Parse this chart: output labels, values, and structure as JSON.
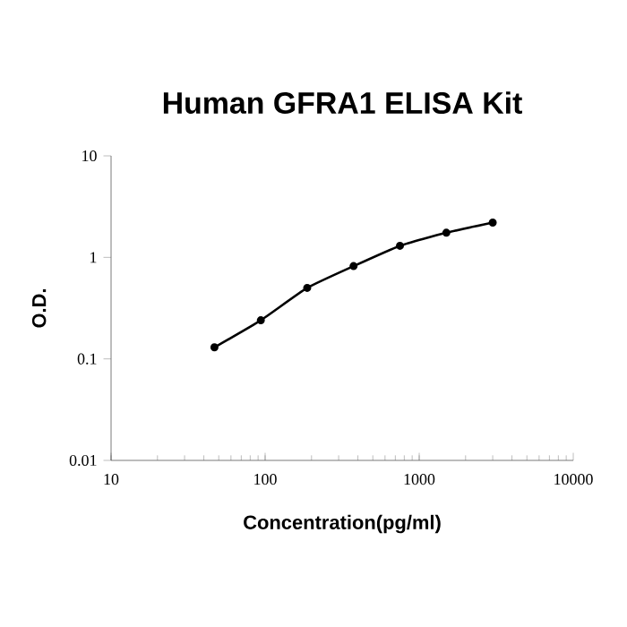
{
  "chart_data": {
    "type": "line",
    "title": "Human GFRA1 ELISA Kit",
    "xlabel": "Concentration(pg/ml)",
    "ylabel": "O.D.",
    "series": [
      {
        "color": "#000000",
        "x": [
          46.875,
          93.75,
          187.5,
          375,
          750,
          1500,
          3000
        ],
        "values": [
          0.13,
          0.24,
          0.5,
          0.82,
          1.3,
          1.75,
          2.2
        ]
      }
    ],
    "log": "xy",
    "xlim": [
      10,
      10000
    ],
    "ylim": [
      0.01,
      10
    ],
    "xticks": [
      10,
      100,
      1000,
      10000
    ],
    "yticks": [
      0.01,
      0.1,
      1,
      10
    ],
    "marker": "circle",
    "line_style": "solid"
  }
}
